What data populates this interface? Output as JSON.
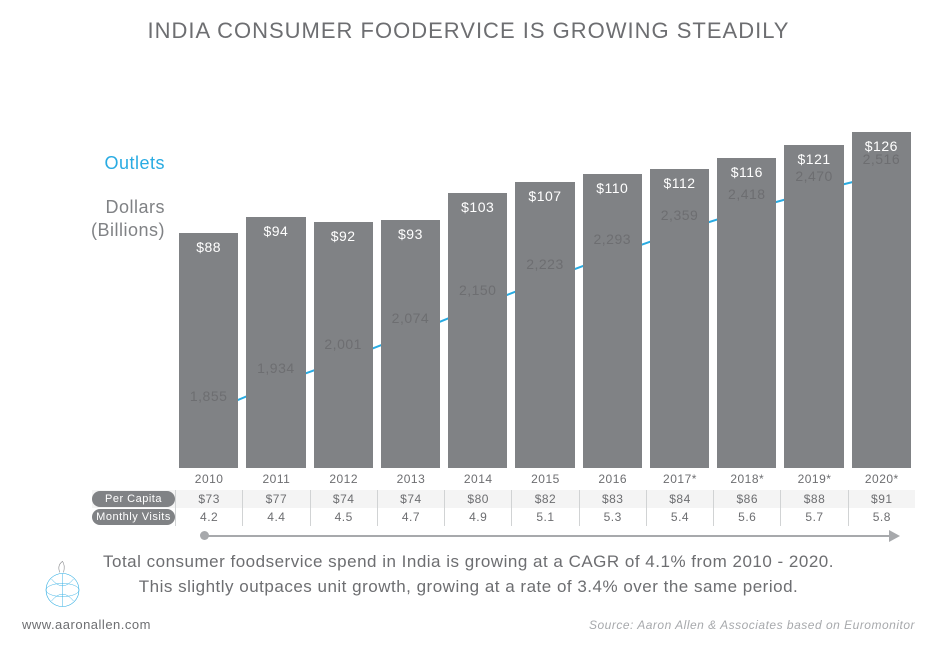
{
  "title": "INDIA CONSUMER FOODERVICE IS GROWING STEADILY",
  "outlets_label": "Outlets",
  "dollars_label_l1": "Dollars",
  "dollars_label_l2": "(Billions)",
  "chart": {
    "type": "bar+line",
    "background_color": "#ffffff",
    "bar_color": "#808285",
    "bar_label_color": "#ffffff",
    "line_color": "#29abe2",
    "line_width": 2,
    "marker_radius": 4.5,
    "text_color": "#6d6e71",
    "bar_width_ratio": 0.88,
    "bar_y_max": 148,
    "line_y_min": 1700,
    "line_y_max": 2800,
    "label_fontsize": 14,
    "years": [
      "2010",
      "2011",
      "2012",
      "2013",
      "2014",
      "2015",
      "2016",
      "2017*",
      "2018*",
      "2019*",
      "2020*"
    ],
    "dollars": [
      88,
      94,
      92,
      93,
      103,
      107,
      110,
      112,
      116,
      121,
      126
    ],
    "outlets": [
      1855,
      1934,
      2001,
      2074,
      2150,
      2223,
      2293,
      2359,
      2418,
      2470,
      2516
    ],
    "dollars_labels": [
      "$88",
      "$94",
      "$92",
      "$93",
      "$103",
      "$107",
      "$110",
      "$112",
      "$116",
      "$121",
      "$126"
    ],
    "outlets_labels": [
      "1,855",
      "1,934",
      "2,001",
      "2,074",
      "2,150",
      "2,223",
      "2,293",
      "2,359",
      "2,418",
      "2,470",
      "2,516"
    ]
  },
  "table": {
    "per_capita_head": "Per Capita Spend",
    "monthly_head": "Monthly Visits",
    "per_capita": [
      "$73",
      "$77",
      "$74",
      "$74",
      "$80",
      "$82",
      "$83",
      "$84",
      "$86",
      "$88",
      "$91"
    ],
    "monthly": [
      "4.2",
      "4.4",
      "4.5",
      "4.7",
      "4.9",
      "5.1",
      "5.3",
      "5.4",
      "5.6",
      "5.7",
      "5.8"
    ]
  },
  "caption_l1": "Total consumer foodservice spend in India is growing at a CAGR of 4.1% from 2010 - 2020.",
  "caption_l2": "This slightly outpaces unit growth, growing at a rate of 3.4% over the same period.",
  "url": "www.aaronallen.com",
  "source": "Source: Aaron Allen & Associates based on Euromonitor"
}
